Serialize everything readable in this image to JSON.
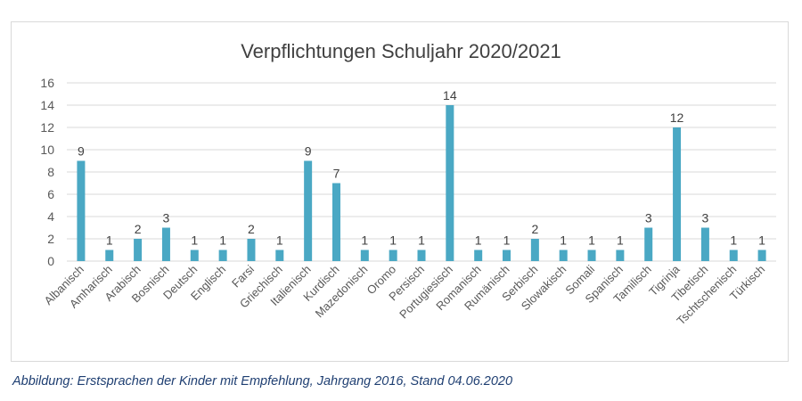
{
  "caption": "Abbildung: Erstsprachen der Kinder mit Empfehlung, Jahrgang 2016, Stand 04.06.2020",
  "colors": {
    "bar": "#4aa8c4",
    "grid": "#d9d9d9",
    "text": "#595959",
    "title": "#404040",
    "caption": "#1f3f72"
  },
  "chart_data": {
    "type": "bar",
    "title": "Verpflichtungen Schuljahr 2020/2021",
    "xlabel": "",
    "ylabel": "",
    "ylim": [
      0,
      16
    ],
    "yticks": [
      0,
      2,
      4,
      6,
      8,
      10,
      12,
      14,
      16
    ],
    "grid": true,
    "data_labels": true,
    "categories": [
      "Albanisch",
      "Amharisch",
      "Arabisch",
      "Bosnisch",
      "Deutsch",
      "Englisch",
      "Farsi",
      "Griechisch",
      "Italienisch",
      "Kurdisch",
      "Mazedonisch",
      "Oromo",
      "Persisch",
      "Portugiesisch",
      "Romanisch",
      "Rumänisch",
      "Serbisch",
      "Slowakisch",
      "Somali",
      "Spanisch",
      "Tamilisch",
      "Tigrinja",
      "Tibetisch",
      "Tschtschenisch",
      "Türkisch"
    ],
    "values": [
      9,
      1,
      2,
      3,
      1,
      1,
      2,
      1,
      9,
      7,
      1,
      1,
      1,
      14,
      1,
      1,
      2,
      1,
      1,
      1,
      3,
      12,
      3,
      1,
      1
    ]
  }
}
